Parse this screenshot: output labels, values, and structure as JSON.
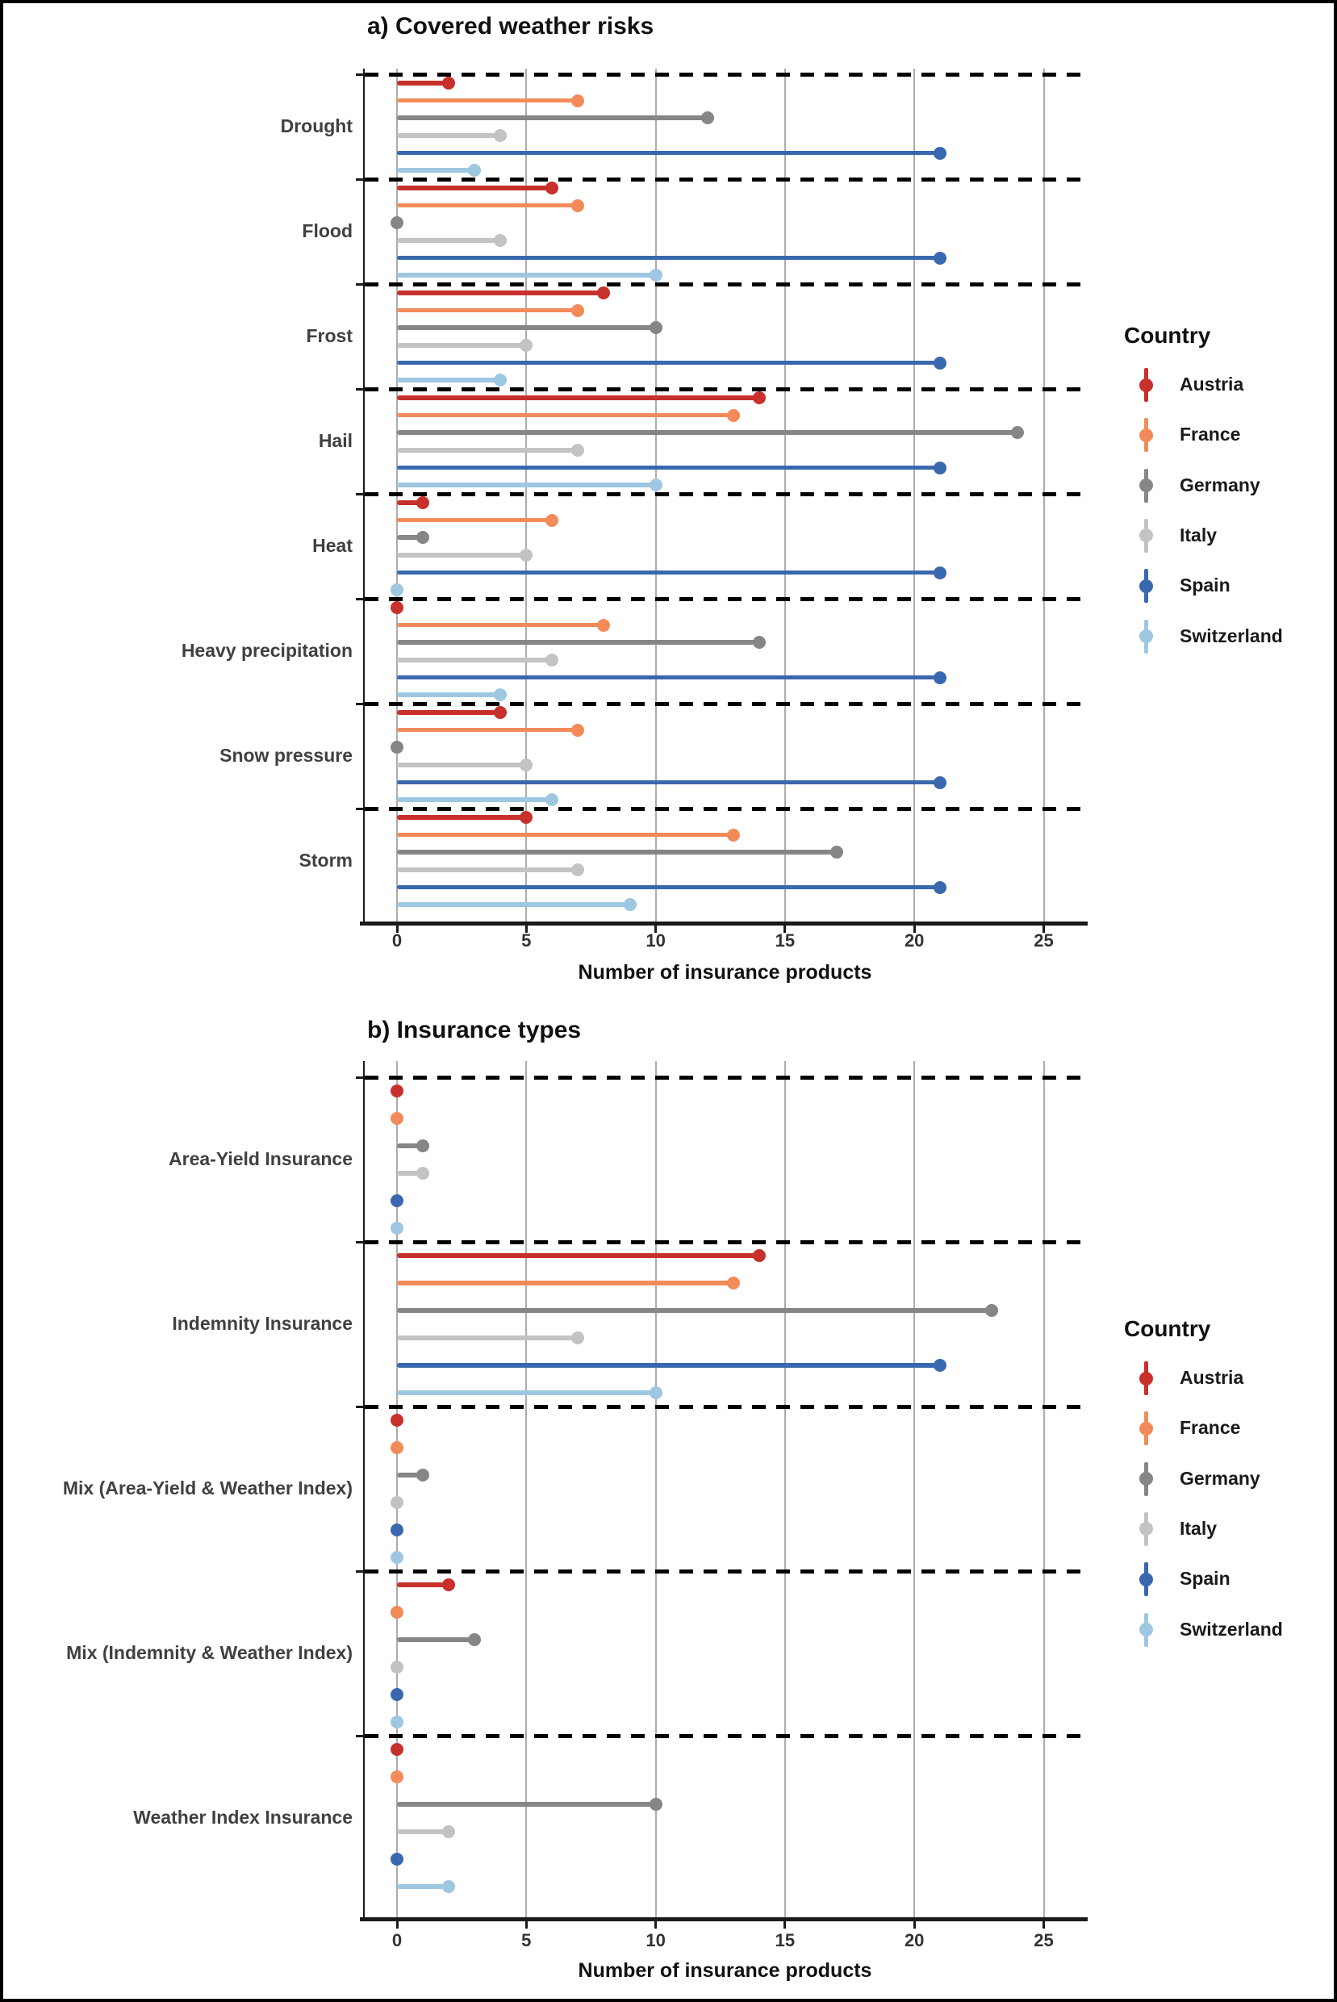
{
  "legend": {
    "title": "Country",
    "position": "right"
  },
  "chart_data": [
    {
      "type": "lollipop",
      "panel": "a",
      "title": "a) Covered weather risks",
      "xlabel": "Number of insurance products",
      "xticks": [
        0,
        5,
        10,
        15,
        20,
        25
      ],
      "xlim": [
        0,
        26.5
      ],
      "grid": "vertical-major",
      "legend_title": "Country",
      "legend_position": "right",
      "separator_style": "black-dashed-between-categories",
      "categories": [
        "Drought",
        "Flood",
        "Frost",
        "Hail",
        "Heat",
        "Heavy precipitation",
        "Snow pressure",
        "Storm"
      ],
      "series": [
        {
          "name": "Austria",
          "color": "#C7302B",
          "values": [
            2,
            6,
            8,
            14,
            1,
            0,
            4,
            5
          ]
        },
        {
          "name": "France",
          "color": "#F28B59",
          "values": [
            7,
            7,
            7,
            13,
            6,
            8,
            7,
            13
          ]
        },
        {
          "name": "Germany",
          "color": "#868686",
          "values": [
            12,
            0,
            10,
            24,
            1,
            14,
            0,
            17
          ]
        },
        {
          "name": "Italy",
          "color": "#C3C3C3",
          "values": [
            4,
            4,
            5,
            7,
            5,
            6,
            5,
            7
          ]
        },
        {
          "name": "Spain",
          "color": "#3A68AE",
          "values": [
            21,
            21,
            21,
            21,
            21,
            21,
            21,
            21
          ]
        },
        {
          "name": "Switzerland",
          "color": "#9EC7E2",
          "values": [
            3,
            10,
            4,
            10,
            0,
            4,
            6,
            9
          ]
        }
      ]
    },
    {
      "type": "lollipop",
      "panel": "b",
      "title": "b) Insurance types",
      "xlabel": "Number of insurance products",
      "xticks": [
        0,
        5,
        10,
        15,
        20,
        25
      ],
      "xlim": [
        0,
        26.5
      ],
      "grid": "vertical-major",
      "legend_title": "Country",
      "legend_position": "right",
      "separator_style": "black-dashed-between-categories",
      "categories": [
        "Area-Yield Insurance",
        "Indemnity Insurance",
        "Mix (Area-Yield & Weather Index)",
        "Mix (Indemnity & Weather Index)",
        "Weather Index Insurance"
      ],
      "series": [
        {
          "name": "Austria",
          "color": "#C7302B",
          "values": [
            0,
            14,
            0,
            2,
            0
          ]
        },
        {
          "name": "France",
          "color": "#F28B59",
          "values": [
            0,
            13,
            0,
            0,
            0
          ]
        },
        {
          "name": "Germany",
          "color": "#868686",
          "values": [
            1,
            23,
            1,
            3,
            10
          ]
        },
        {
          "name": "Italy",
          "color": "#C3C3C3",
          "values": [
            1,
            7,
            0,
            0,
            2
          ]
        },
        {
          "name": "Spain",
          "color": "#3A68AE",
          "values": [
            0,
            21,
            0,
            0,
            0
          ]
        },
        {
          "name": "Switzerland",
          "color": "#9EC7E2",
          "values": [
            0,
            10,
            0,
            0,
            2
          ]
        }
      ]
    }
  ],
  "style_colors": {
    "gridline": "#ACACAC",
    "separator": "#000000",
    "axis": "#1A1A1A",
    "tick_label": "#333333",
    "category_label": "#404040",
    "legend_label": "#1A1A1A"
  }
}
